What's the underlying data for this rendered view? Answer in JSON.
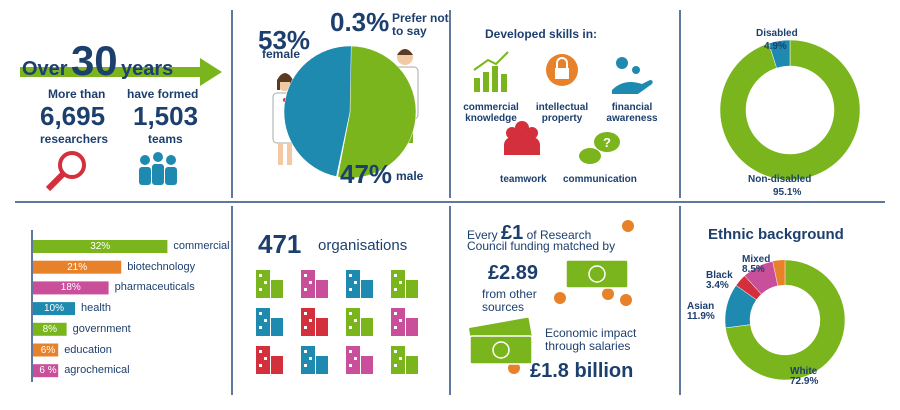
{
  "stats": {
    "over": "Over",
    "years_number": "30",
    "years": "years",
    "more_than": "More than",
    "researchers_number": "6,695",
    "researchers": "researchers",
    "have_formed": "have formed",
    "teams_number": "1,503",
    "teams": "teams"
  },
  "skills": {
    "title": "Developed skills in:",
    "items": [
      "commercial knowledge",
      "intellectual property",
      "financial awareness",
      "teamwork",
      "communication"
    ]
  },
  "organisations": {
    "number": "471",
    "label": "organisations"
  },
  "funding": {
    "every": "Every",
    "amount": "£1",
    "of_research": "of Research",
    "council_line": "Council funding matched by",
    "matched": "£2.89",
    "from_other": "from other sources",
    "impact": "Economic impact through salaries",
    "impact_value": "£1.8 billion"
  },
  "chart_data": [
    {
      "type": "pie",
      "categories": [
        "female",
        "Prefer not to say",
        "male"
      ],
      "values": [
        53,
        0.3,
        47
      ],
      "value_labels": [
        "53%",
        "0.3%",
        "47%"
      ],
      "colors": [
        "#7ab51d",
        "#ffffff",
        "#1f8ab0"
      ]
    },
    {
      "type": "donut",
      "categories": [
        "Disabled",
        "Non-disabled"
      ],
      "values": [
        4.9,
        95.1
      ],
      "value_labels": [
        "4.9%",
        "95.1%"
      ],
      "colors": [
        "#1f8ab0",
        "#7ab51d"
      ]
    },
    {
      "type": "bar",
      "orientation": "horizontal",
      "categories": [
        "commercial",
        "biotechnology",
        "pharmaceuticals",
        "health",
        "government",
        "education",
        "agrochemical"
      ],
      "values": [
        32,
        21,
        18,
        10,
        8,
        6,
        6
      ],
      "value_labels": [
        "32%",
        "21%",
        "18%",
        "10%",
        "8%",
        "6%",
        "6 %"
      ],
      "colors": [
        "#7ab51d",
        "#e8822a",
        "#c94f9b",
        "#1f8ab0",
        "#7ab51d",
        "#e8822a",
        "#c94f9b"
      ]
    },
    {
      "type": "donut",
      "title": "Ethnic background",
      "categories": [
        "White",
        "Asian",
        "Black",
        "Mixed"
      ],
      "values": [
        72.9,
        11.9,
        3.4,
        8.5
      ],
      "value_labels": [
        "72.9%",
        "11.9%",
        "3.4%",
        "8.5%"
      ],
      "colors": [
        "#7ab51d",
        "#1f8ab0",
        "#d32f3c",
        "#c94f9b"
      ]
    }
  ]
}
